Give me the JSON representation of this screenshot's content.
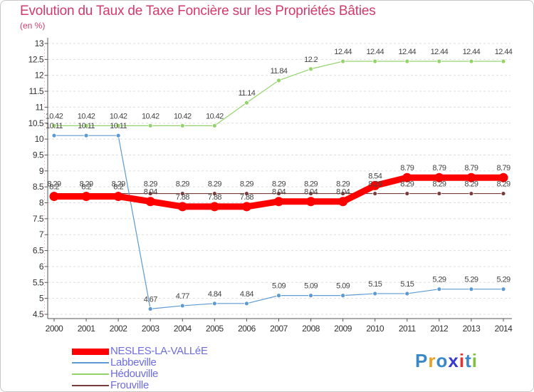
{
  "title": "Evolution du Taux de Taxe Foncière sur les Propriétés Bâties",
  "unit_label": "(en %)",
  "logo_text": "Proxiti",
  "colors": {
    "title": "#d33a6b",
    "legend_text": "#6d6ce0",
    "axis": "#555555",
    "grid": "#dddddd",
    "logo_letters": [
      "#3a88c8",
      "#e8a020",
      "#3a88c8",
      "#3a3ad0",
      "#e83030",
      "#3a88c8",
      "#80c040"
    ]
  },
  "chart_data": {
    "type": "line",
    "title": "Evolution du Taux de Taxe Foncière sur les Propriétés Bâties",
    "ylabel": "(en %)",
    "xlabel": "",
    "x": [
      "2000",
      "2001",
      "2002",
      "2003",
      "2004",
      "2005",
      "2006",
      "2007",
      "2008",
      "2009",
      "2010",
      "2011",
      "2012",
      "2013",
      "2014"
    ],
    "ylim": [
      4.5,
      13
    ],
    "yticks": [
      "4.5",
      "5",
      "5.5",
      "6",
      "6.5",
      "7",
      "7.5",
      "8",
      "8.5",
      "9",
      "9.5",
      "10",
      "10.5",
      "11",
      "11.5",
      "12",
      "12.5",
      "13"
    ],
    "grid": "horizontal",
    "legend_position": "bottom-left",
    "series": [
      {
        "name": "Frouville",
        "color": "#7a3b3b",
        "line_width": 1.2,
        "marker_radius": 3,
        "values": [
          8.29,
          8.29,
          8.29,
          8.29,
          8.29,
          8.29,
          8.29,
          8.29,
          8.29,
          8.29,
          8.29,
          8.29,
          8.29,
          8.29,
          8.29
        ],
        "labels": [
          "8.29",
          "8.29",
          "8.29",
          "8.29",
          "8.29",
          "8.29",
          "8.29",
          "8.29",
          "8.29",
          "8.29",
          "8.29",
          "8.29",
          "8.29",
          "8.29",
          "8.29"
        ]
      },
      {
        "name": "Hédouville",
        "color": "#94d36a",
        "line_width": 1.2,
        "marker_radius": 3,
        "values": [
          10.42,
          10.42,
          10.42,
          10.42,
          10.42,
          10.42,
          11.14,
          11.84,
          12.2,
          12.44,
          12.44,
          12.44,
          12.44,
          12.44,
          12.44
        ],
        "labels": [
          "10.42",
          "10.42",
          "10.42",
          "10.42",
          "10.42",
          "10.42",
          "11.14",
          "11.84",
          "12.2",
          "12.44",
          "12.44",
          "12.44",
          "12.44",
          "12.44",
          "12.44"
        ]
      },
      {
        "name": "Labbeville",
        "color": "#5d9ad1",
        "line_width": 1.2,
        "marker_radius": 3,
        "values": [
          10.11,
          10.11,
          10.11,
          4.67,
          4.77,
          4.84,
          4.84,
          5.09,
          5.09,
          5.09,
          5.15,
          5.15,
          5.29,
          5.29,
          5.29
        ],
        "labels": [
          "10.11",
          "10.11",
          "10.11",
          "4.67",
          "4.77",
          "4.84",
          "4.84",
          "5.09",
          "5.09",
          "5.09",
          "5.15",
          "5.15",
          "5.29",
          "5.29",
          "5.29"
        ]
      },
      {
        "name": "NESLES-LA-VALLéE",
        "color": "#ff0000",
        "line_width": 9,
        "marker_radius": 6.5,
        "values": [
          8.2,
          8.2,
          8.2,
          8.04,
          7.88,
          7.88,
          7.88,
          8.04,
          8.04,
          8.04,
          8.54,
          8.79,
          8.79,
          8.79,
          8.79
        ],
        "labels": [
          "8.2",
          "8.2",
          "8.2",
          "8.04",
          "7.88",
          "7.88",
          "7.88",
          "8.04",
          "8.04",
          "8.04",
          "8.54",
          "8.79",
          "8.79",
          "8.79",
          "8.79"
        ]
      }
    ],
    "legend_order": [
      "NESLES-LA-VALLéE",
      "Labbeville",
      "Hédouville",
      "Frouville"
    ]
  }
}
